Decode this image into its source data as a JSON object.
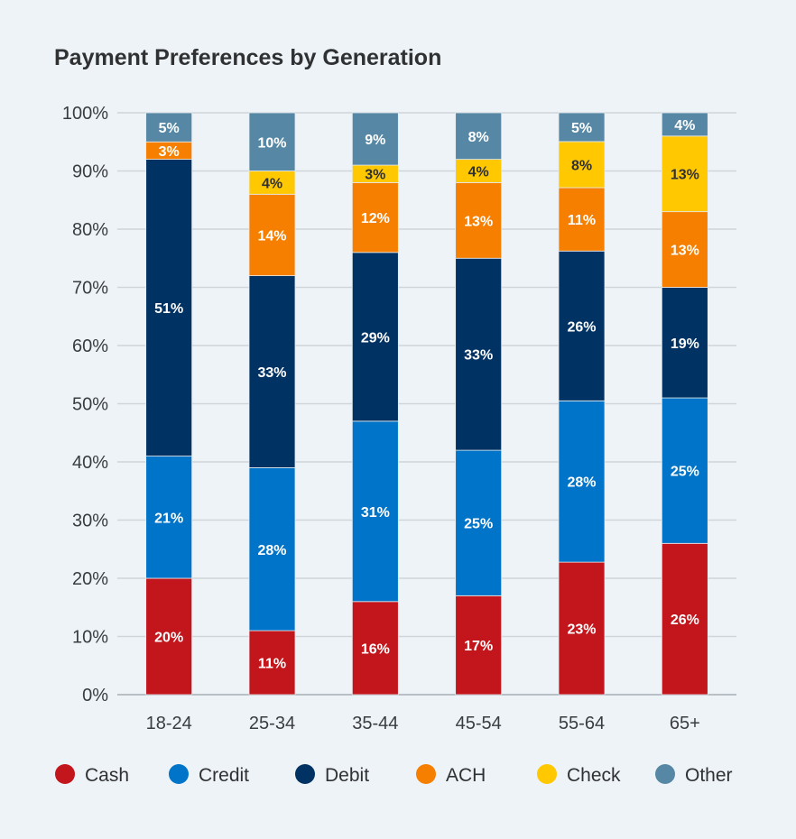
{
  "chart_data": {
    "type": "bar",
    "stacked": true,
    "title": "Payment Preferences by Generation",
    "xlabel": "",
    "ylabel": "",
    "ylim": [
      0,
      100
    ],
    "yticks": [
      "0%",
      "10%",
      "20%",
      "30%",
      "40%",
      "50%",
      "60%",
      "70%",
      "80%",
      "90%",
      "100%"
    ],
    "grid": true,
    "legend_position": "bottom",
    "categories": [
      "18-24",
      "25-34",
      "35-44",
      "45-54",
      "55-64",
      "65+"
    ],
    "series": [
      {
        "name": "Cash",
        "color": "#c3161c",
        "label_color": "#ffffff",
        "values": [
          20,
          11,
          16,
          17,
          23,
          26
        ]
      },
      {
        "name": "Credit",
        "color": "#0074c8",
        "label_color": "#ffffff",
        "values": [
          21,
          28,
          31,
          25,
          28,
          25
        ]
      },
      {
        "name": "Debit",
        "color": "#003263",
        "label_color": "#ffffff",
        "values": [
          51,
          33,
          29,
          33,
          26,
          19
        ]
      },
      {
        "name": "ACH",
        "color": "#f77f00",
        "label_color": "#ffffff",
        "values": [
          3,
          14,
          12,
          13,
          11,
          13
        ]
      },
      {
        "name": "Check",
        "color": "#ffc800",
        "label_color": "#2f3133",
        "values": [
          0,
          4,
          3,
          4,
          8,
          13
        ]
      },
      {
        "name": "Other",
        "color": "#5688a5",
        "label_color": "#ffffff",
        "values": [
          5,
          10,
          9,
          8,
          5,
          4
        ]
      }
    ]
  }
}
